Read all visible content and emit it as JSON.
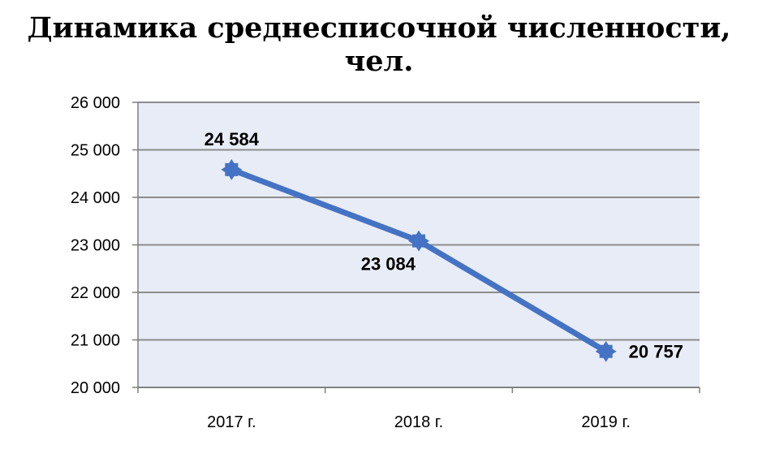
{
  "chart_data": {
    "type": "line",
    "title": "Динамика среднесписочной численности, чел.",
    "categories": [
      "2017 г.",
      "2018 г.",
      "2019 г."
    ],
    "series": [
      {
        "values": [
          24584,
          23084,
          20757
        ],
        "data_labels": [
          "24 584",
          "23 084",
          "20 757"
        ]
      }
    ],
    "ylim": [
      20000,
      26000
    ],
    "yticks": [
      20000,
      21000,
      22000,
      23000,
      24000,
      25000,
      26000
    ],
    "ytick_labels": [
      "20 000",
      "21 000",
      "22 000",
      "23 000",
      "24 000",
      "25 000",
      "26 000"
    ],
    "grid": true,
    "colors": {
      "line": "#4472c4",
      "plot_bg": "#e8ecf6",
      "grid": "#8c8c8c"
    }
  }
}
